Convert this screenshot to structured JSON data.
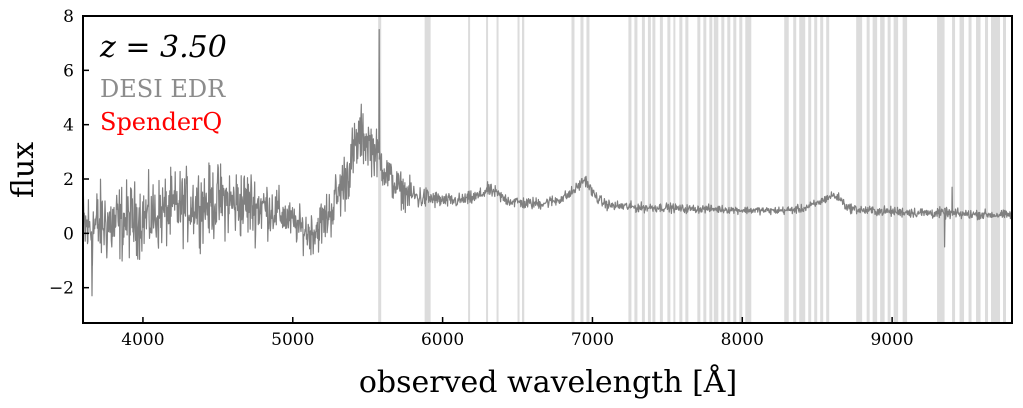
{
  "chart_data": {
    "type": "line",
    "title": "",
    "xlabel": "observed wavelength [Å]",
    "ylabel": "flux",
    "xlim": [
      3600,
      9800
    ],
    "ylim": [
      -3.3,
      8.0
    ],
    "xticks": [
      4000,
      5000,
      6000,
      7000,
      8000,
      9000
    ],
    "xtick_labels": [
      "4000",
      "5000",
      "6000",
      "7000",
      "8000",
      "9000"
    ],
    "yticks": [
      -2,
      0,
      2,
      4,
      6,
      8
    ],
    "ytick_labels": [
      "−2",
      "0",
      "2",
      "4",
      "6",
      "8"
    ],
    "grid": false,
    "annotations": {
      "redshift": "z = 3.50",
      "legend": [
        {
          "name": "DESI EDR",
          "color": "#8c8c8c"
        },
        {
          "name": "SpenderQ",
          "color": "#ff0000"
        }
      ],
      "legend_placement": "top-left"
    },
    "series": [
      {
        "name": "DESI EDR",
        "color": "#808080",
        "x": [
          3600,
          3650,
          3700,
          3750,
          3800,
          3850,
          3900,
          3950,
          4000,
          4050,
          4100,
          4150,
          4200,
          4250,
          4300,
          4350,
          4400,
          4450,
          4500,
          4550,
          4600,
          4650,
          4700,
          4750,
          4800,
          4850,
          4900,
          4950,
          5000,
          5050,
          5100,
          5150,
          5200,
          5250,
          5300,
          5350,
          5400,
          5450,
          5500,
          5550,
          5600,
          5650,
          5700,
          5750,
          5800,
          5850,
          5900,
          5950,
          6000,
          6050,
          6100,
          6150,
          6200,
          6250,
          6300,
          6350,
          6400,
          6450,
          6500,
          6550,
          6600,
          6650,
          6700,
          6750,
          6800,
          6850,
          6900,
          6950,
          7000,
          7050,
          7100,
          7150,
          7200,
          7300,
          7400,
          7500,
          7600,
          7700,
          7800,
          7900,
          8000,
          8100,
          8200,
          8300,
          8400,
          8450,
          8500,
          8550,
          8600,
          8650,
          8700,
          8800,
          8900,
          9000,
          9100,
          9200,
          9300,
          9400,
          9500,
          9600,
          9700,
          9800
        ],
        "y": [
          0.1,
          0.2,
          0.3,
          0.4,
          0.3,
          0.4,
          0.5,
          0.5,
          0.6,
          0.6,
          0.7,
          0.8,
          0.9,
          1.0,
          1.0,
          1.1,
          1.1,
          1.1,
          1.2,
          1.2,
          1.1,
          1.1,
          1.1,
          1.0,
          1.0,
          0.9,
          0.8,
          0.6,
          0.4,
          0.2,
          0.05,
          0.1,
          0.4,
          0.8,
          1.4,
          2.0,
          2.8,
          3.6,
          3.4,
          3.0,
          2.5,
          2.0,
          1.7,
          1.5,
          1.4,
          1.3,
          1.3,
          1.25,
          1.2,
          1.2,
          1.2,
          1.25,
          1.3,
          1.4,
          1.6,
          1.5,
          1.3,
          1.2,
          1.15,
          1.1,
          1.1,
          1.1,
          1.15,
          1.2,
          1.3,
          1.45,
          1.7,
          2.0,
          1.5,
          1.2,
          1.05,
          1.0,
          1.0,
          0.95,
          0.95,
          0.95,
          0.9,
          0.9,
          0.9,
          0.88,
          0.85,
          0.85,
          0.83,
          0.85,
          0.9,
          1.0,
          1.1,
          1.25,
          1.4,
          1.3,
          0.95,
          0.85,
          0.82,
          0.8,
          0.78,
          0.75,
          0.75,
          0.72,
          0.7,
          0.7,
          0.68,
          0.68
        ],
        "noise_by_wavelength": [
          [
            3600,
            1.2
          ],
          [
            4000,
            1.0
          ],
          [
            4700,
            1.0
          ],
          [
            5000,
            0.5
          ],
          [
            5400,
            0.9
          ],
          [
            5600,
            0.6
          ],
          [
            6000,
            0.2
          ],
          [
            7000,
            0.15
          ],
          [
            8000,
            0.1
          ],
          [
            9300,
            0.15
          ],
          [
            9800,
            0.12
          ]
        ]
      }
    ],
    "spikes": [
      {
        "x": 5577,
        "y": 7.5
      },
      {
        "x": 3660,
        "y": -2.3
      },
      {
        "x": 9400,
        "y": 1.7
      },
      {
        "x": 9350,
        "y": -0.5
      }
    ],
    "masked_regions": [
      [
        5570,
        5590
      ],
      [
        5880,
        5920
      ],
      [
        6170,
        6180
      ],
      [
        6290,
        6300
      ],
      [
        6360,
        6370
      ],
      [
        6500,
        6510
      ],
      [
        6530,
        6545
      ],
      [
        6860,
        6880
      ],
      [
        6920,
        6940
      ],
      [
        6960,
        6980
      ],
      [
        7240,
        7260
      ],
      [
        7280,
        7300
      ],
      [
        7330,
        7350
      ],
      [
        7370,
        7390
      ],
      [
        7400,
        7420
      ],
      [
        7450,
        7470
      ],
      [
        7500,
        7520
      ],
      [
        7540,
        7550
      ],
      [
        7580,
        7600
      ],
      [
        7620,
        7640
      ],
      [
        7700,
        7720
      ],
      [
        7740,
        7760
      ],
      [
        7780,
        7800
      ],
      [
        7810,
        7840
      ],
      [
        7860,
        7880
      ],
      [
        7900,
        7920
      ],
      [
        7940,
        7960
      ],
      [
        7980,
        8000
      ],
      [
        8020,
        8060
      ],
      [
        8280,
        8310
      ],
      [
        8340,
        8360
      ],
      [
        8380,
        8420
      ],
      [
        8440,
        8460
      ],
      [
        8480,
        8500
      ],
      [
        8520,
        8540
      ],
      [
        8560,
        8580
      ],
      [
        8760,
        8800
      ],
      [
        8830,
        8850
      ],
      [
        8870,
        8900
      ],
      [
        8920,
        8950
      ],
      [
        8970,
        8990
      ],
      [
        9010,
        9040
      ],
      [
        9070,
        9100
      ],
      [
        9300,
        9350
      ],
      [
        9400,
        9420
      ],
      [
        9450,
        9480
      ],
      [
        9510,
        9530
      ],
      [
        9560,
        9590
      ],
      [
        9620,
        9640
      ],
      [
        9660,
        9720
      ],
      [
        9740,
        9760
      ]
    ]
  }
}
